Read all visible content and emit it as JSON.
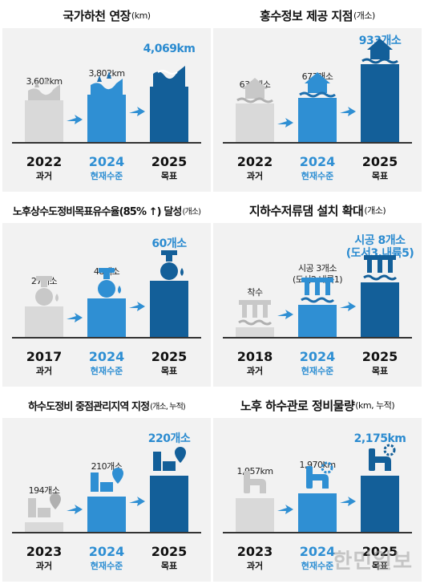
{
  "panels": [
    {
      "title": "국가하천 연장",
      "unit": "(km)",
      "values": [
        "3,602km",
        "3,802km",
        "4,069km"
      ],
      "years": [
        "2022",
        "2024",
        "2025"
      ],
      "labels": [
        "과거",
        "현재수준",
        "목표"
      ]
    },
    {
      "title": "홍수정보 제공 지점",
      "unit": "(개소)",
      "values": [
        "631개소",
        "673개소",
        "933개소"
      ],
      "years": [
        "2022",
        "2024",
        "2025"
      ],
      "labels": [
        "과거",
        "현재수준",
        "목표"
      ]
    },
    {
      "title": "노후상수도정비목표유수율(85% ↑) 달성",
      "unit": "(개소)",
      "values": [
        "27개소",
        "48개소",
        "60개소"
      ],
      "years": [
        "2017",
        "2024",
        "2025"
      ],
      "labels": [
        "과거",
        "현재수준",
        "목표"
      ]
    },
    {
      "title": "지하수저류댐 설치 확대",
      "unit": "(개소)",
      "values": [
        "착수",
        "시공 3개소",
        "시공 8개소"
      ],
      "values_sub": [
        "",
        "(도서2,내륙1)",
        "(도서3,내륙5)"
      ],
      "years": [
        "2018",
        "2024",
        "2025"
      ],
      "labels": [
        "과거",
        "현재수준",
        "목표"
      ]
    },
    {
      "title": "하수도정비 중점관리지역 지정",
      "unit": "(개소, 누적)",
      "values": [
        "194개소",
        "210개소",
        "220개소"
      ],
      "years": [
        "2023",
        "2024",
        "2025"
      ],
      "labels": [
        "과거",
        "현재수준",
        "목표"
      ]
    },
    {
      "title": "노후 하수관로 정비물량",
      "unit": "(km, 누적)",
      "values": [
        "1,957km",
        "1,970km",
        "2,175km"
      ],
      "years": [
        "2023",
        "2024",
        "2025"
      ],
      "labels": [
        "과거",
        "현재수준",
        "목표"
      ]
    }
  ],
  "watermark": "한민일보",
  "colors": {
    "past": "#d9d9d9",
    "current": "#2f8fd3",
    "target": "#135f99",
    "target_text": "#2b8bd0",
    "panel_bg": "#f2f2f2"
  },
  "icons": [
    "river-icon",
    "flood-house-icon",
    "water-tap-icon",
    "dam-icon",
    "drain-pin-icon",
    "sewer-pipe-icon"
  ]
}
